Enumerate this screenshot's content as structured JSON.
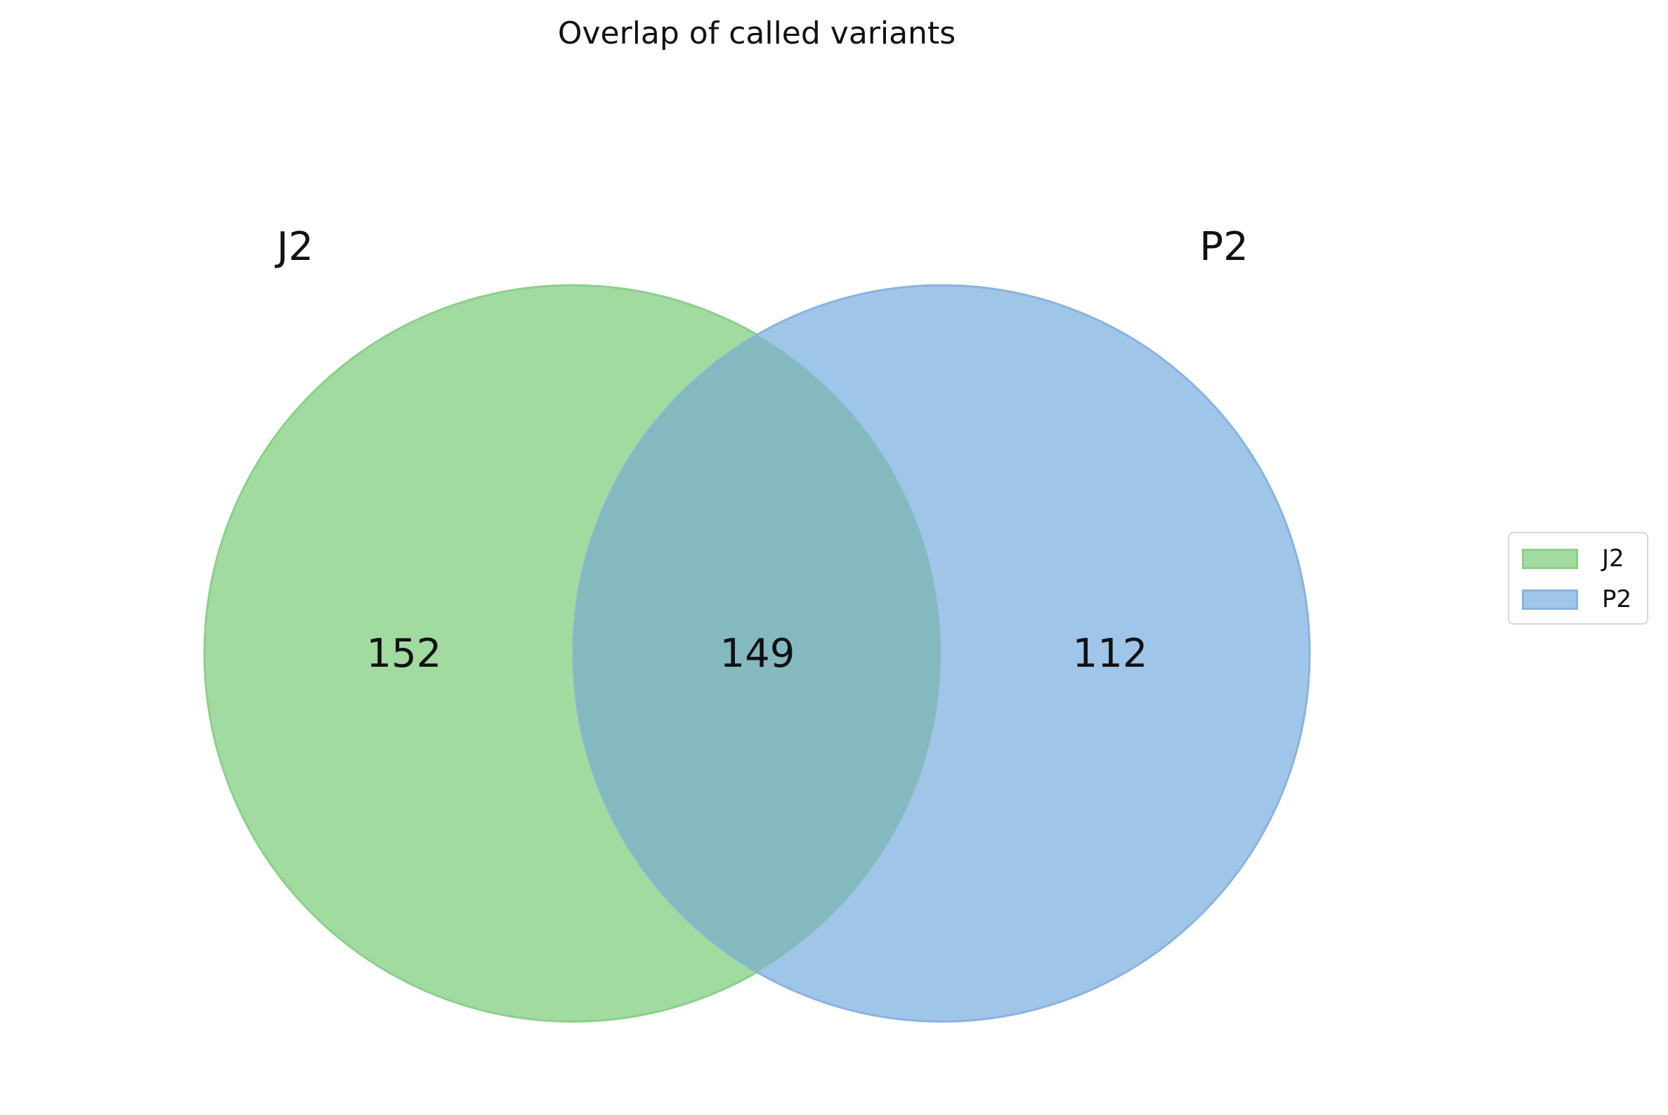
{
  "chart_data": {
    "type": "venn",
    "title": "Overlap of called variants",
    "sets": [
      {
        "name": "J2",
        "color": "#a1dba0",
        "edge": "#8ccf8a"
      },
      {
        "name": "P2",
        "color": "#9fc5e8",
        "edge": "#8ab3de"
      }
    ],
    "regions": [
      {
        "sets": [
          "J2"
        ],
        "value": 152
      },
      {
        "sets": [
          "J2",
          "P2"
        ],
        "value": 149
      },
      {
        "sets": [
          "P2"
        ],
        "value": 112
      }
    ],
    "overlap_color": "#84babf",
    "legend_position": "right"
  }
}
